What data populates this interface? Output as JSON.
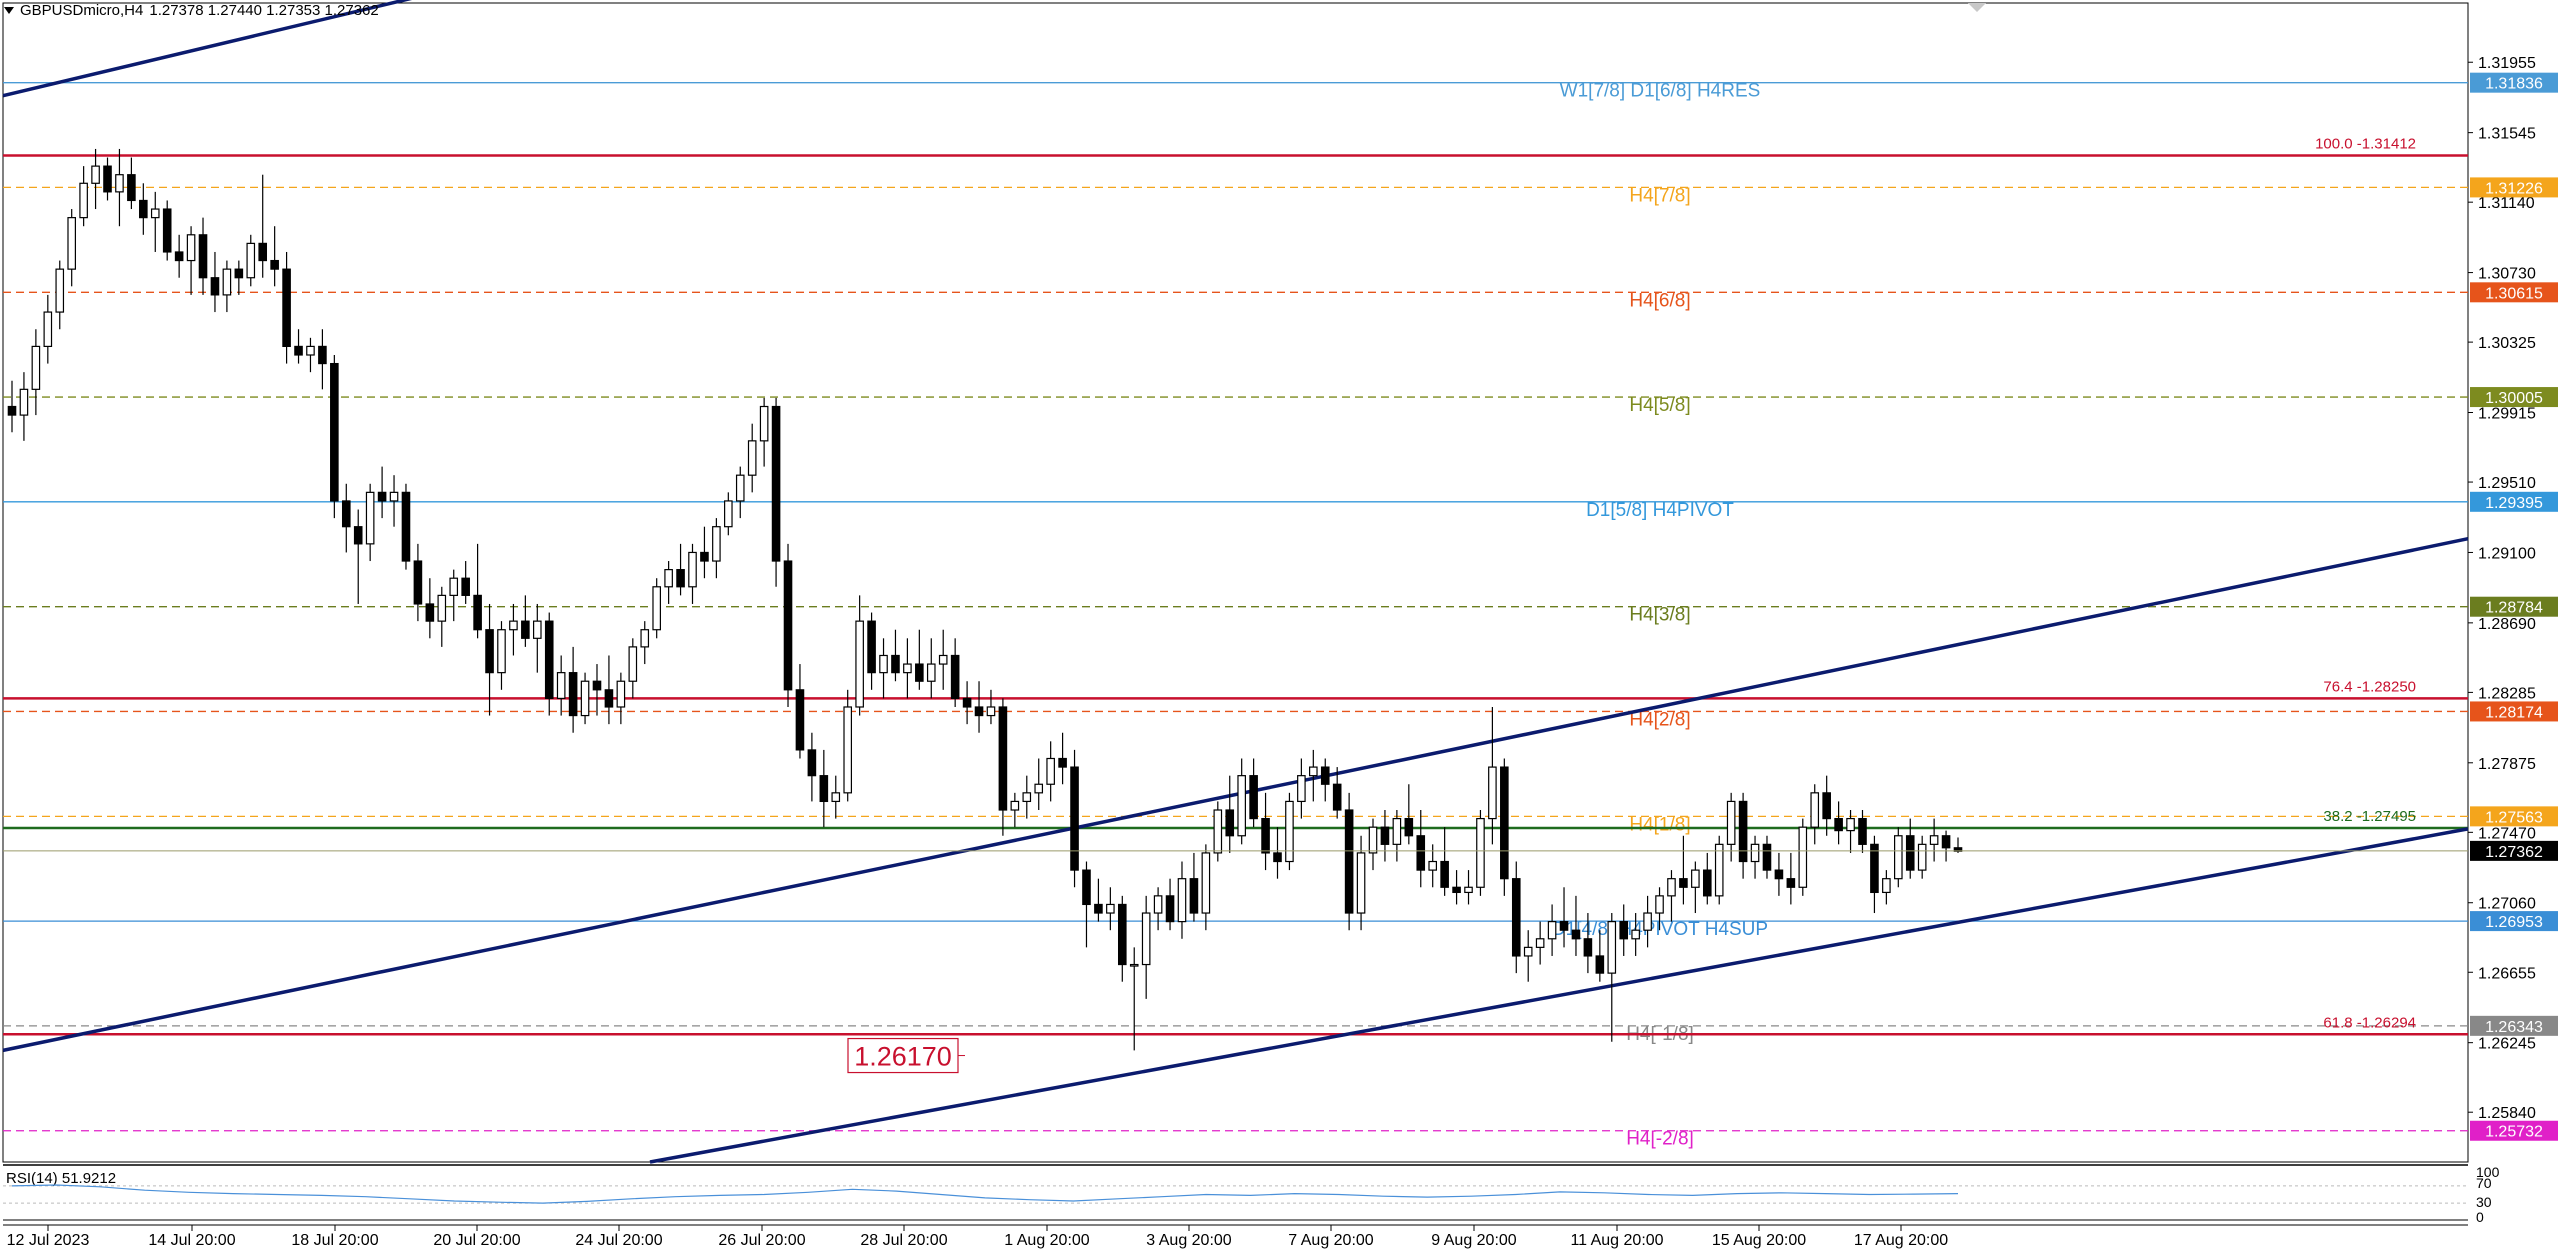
{
  "header": {
    "symbol": "GBPUSDmicro,H4",
    "ohlc": "1.27378 1.27440 1.27353 1.27362"
  },
  "chart_data": {
    "type": "candlestick",
    "ylim": [
      1.2555,
      1.323
    ],
    "price_ticks": [
      "1.31955",
      "1.31545",
      "1.31140",
      "1.30730",
      "1.30325",
      "1.29915",
      "1.29510",
      "1.29100",
      "1.28690",
      "1.28285",
      "1.27875",
      "1.27470",
      "1.27060",
      "1.26655",
      "1.26245",
      "1.25840"
    ],
    "x_labels": [
      "12 Jul 2023",
      "14 Jul 20:00",
      "18 Jul 20:00",
      "20 Jul 20:00",
      "24 Jul 20:00",
      "26 Jul 20:00",
      "28 Jul 20:00",
      "1 Aug 20:00",
      "3 Aug 20:00",
      "7 Aug 20:00",
      "9 Aug 20:00",
      "11 Aug 20:00",
      "15 Aug 20:00",
      "17 Aug 20:00"
    ],
    "levels": [
      {
        "value": 1.31836,
        "badge": "1.31836",
        "label": "W1[7/8] D1[6/8] H4RES",
        "color": "#4a9bd6",
        "style": "solid"
      },
      {
        "value": 1.31412,
        "badge": "",
        "label": "100.0 -1.31412",
        "color": "#c8102e",
        "style": "solid"
      },
      {
        "value": 1.31226,
        "badge": "1.31226",
        "label": "H4[7/8]",
        "color": "#f4a51c",
        "style": "dash"
      },
      {
        "value": 1.30615,
        "badge": "1.30615",
        "label": "H4[6/8]",
        "color": "#e6541b",
        "style": "dash"
      },
      {
        "value": 1.30005,
        "badge": "1.30005",
        "label": "H4[5/8]",
        "color": "#7d8b1f",
        "style": "dash"
      },
      {
        "value": 1.29395,
        "badge": "1.29395",
        "label": "D1[5/8] H4PIVOT",
        "color": "#3498db",
        "style": "solid"
      },
      {
        "value": 1.28784,
        "badge": "1.28784",
        "label": "H4[3/8]",
        "color": "#6b7d1f",
        "style": "dash"
      },
      {
        "value": 1.2825,
        "badge": "",
        "label": "76.4 -1.28250",
        "color": "#c8102e",
        "style": "solid"
      },
      {
        "value": 1.28174,
        "badge": "1.28174",
        "label": "H4[2/8]",
        "color": "#e6541b",
        "style": "dash"
      },
      {
        "value": 1.27563,
        "badge": "1.27563",
        "label": "H4[1/8]",
        "color": "#f4a51c",
        "style": "dash"
      },
      {
        "value": 1.27495,
        "badge": "",
        "label": "38.2 -1.27495",
        "color": "#1e6b1e",
        "style": "solid"
      },
      {
        "value": 1.26953,
        "badge": "1.26953",
        "label": "D1[4/8] H4PIVOT H4SUP",
        "color": "#3a8ed6",
        "style": "solid"
      },
      {
        "value": 1.26343,
        "badge": "1.26343",
        "label": "H4[-1/8]",
        "color": "#888888",
        "style": "dash"
      },
      {
        "value": 1.26294,
        "badge": "",
        "label": "61.8 -1.26294",
        "color": "#c8102e",
        "style": "solid"
      },
      {
        "value": 1.25732,
        "badge": "1.25732",
        "label": "H4[-2/8]",
        "color": "#e020c8",
        "style": "dash"
      }
    ],
    "current_price": "1.27362",
    "low_marker": "1.26170",
    "rsi": {
      "label": "RSI(14) 51.9212",
      "ticks": [
        "100",
        "70",
        "30",
        "0"
      ]
    },
    "candles": [
      [
        1.2995,
        1.301,
        1.298,
        1.299
      ],
      [
        1.299,
        1.3015,
        1.2975,
        1.3005
      ],
      [
        1.3005,
        1.304,
        1.299,
        1.303
      ],
      [
        1.303,
        1.306,
        1.302,
        1.305
      ],
      [
        1.305,
        1.308,
        1.304,
        1.3075
      ],
      [
        1.3075,
        1.311,
        1.3065,
        1.3105
      ],
      [
        1.3105,
        1.3135,
        1.31,
        1.3125
      ],
      [
        1.3125,
        1.3145,
        1.311,
        1.3135
      ],
      [
        1.3135,
        1.314,
        1.3115,
        1.312
      ],
      [
        1.312,
        1.3145,
        1.31,
        1.313
      ],
      [
        1.313,
        1.314,
        1.311,
        1.3115
      ],
      [
        1.3115,
        1.3125,
        1.3095,
        1.3105
      ],
      [
        1.3105,
        1.312,
        1.3085,
        1.311
      ],
      [
        1.311,
        1.3115,
        1.308,
        1.3085
      ],
      [
        1.3085,
        1.3095,
        1.307,
        1.308
      ],
      [
        1.308,
        1.31,
        1.306,
        1.3095
      ],
      [
        1.3095,
        1.3105,
        1.306,
        1.307
      ],
      [
        1.307,
        1.3085,
        1.305,
        1.306
      ],
      [
        1.306,
        1.308,
        1.305,
        1.3075
      ],
      [
        1.3075,
        1.308,
        1.306,
        1.307
      ],
      [
        1.307,
        1.3095,
        1.3065,
        1.309
      ],
      [
        1.309,
        1.313,
        1.307,
        1.308
      ],
      [
        1.308,
        1.31,
        1.3065,
        1.3075
      ],
      [
        1.3075,
        1.3085,
        1.302,
        1.303
      ],
      [
        1.303,
        1.304,
        1.302,
        1.3025
      ],
      [
        1.3025,
        1.3035,
        1.3015,
        1.303
      ],
      [
        1.303,
        1.304,
        1.3005,
        1.302
      ],
      [
        1.302,
        1.3025,
        1.293,
        1.294
      ],
      [
        1.294,
        1.295,
        1.291,
        1.2925
      ],
      [
        1.2925,
        1.2935,
        1.288,
        1.2915
      ],
      [
        1.2915,
        1.295,
        1.2905,
        1.2945
      ],
      [
        1.2945,
        1.296,
        1.293,
        1.294
      ],
      [
        1.294,
        1.2955,
        1.2925,
        1.2945
      ],
      [
        1.2945,
        1.295,
        1.29,
        1.2905
      ],
      [
        1.2905,
        1.2915,
        1.287,
        1.288
      ],
      [
        1.288,
        1.2895,
        1.286,
        1.287
      ],
      [
        1.287,
        1.289,
        1.2855,
        1.2885
      ],
      [
        1.2885,
        1.29,
        1.287,
        1.2895
      ],
      [
        1.2895,
        1.2905,
        1.288,
        1.2885
      ],
      [
        1.2885,
        1.2915,
        1.286,
        1.2865
      ],
      [
        1.2865,
        1.288,
        1.2815,
        1.284
      ],
      [
        1.284,
        1.287,
        1.283,
        1.2865
      ],
      [
        1.2865,
        1.288,
        1.285,
        1.287
      ],
      [
        1.287,
        1.2885,
        1.2855,
        1.286
      ],
      [
        1.286,
        1.288,
        1.284,
        1.287
      ],
      [
        1.287,
        1.2875,
        1.2815,
        1.2825
      ],
      [
        1.2825,
        1.285,
        1.2815,
        1.284
      ],
      [
        1.284,
        1.2855,
        1.2805,
        1.2815
      ],
      [
        1.2815,
        1.284,
        1.281,
        1.2835
      ],
      [
        1.2835,
        1.2845,
        1.2815,
        1.283
      ],
      [
        1.283,
        1.285,
        1.281,
        1.282
      ],
      [
        1.282,
        1.284,
        1.281,
        1.2835
      ],
      [
        1.2835,
        1.286,
        1.2825,
        1.2855
      ],
      [
        1.2855,
        1.287,
        1.2845,
        1.2865
      ],
      [
        1.2865,
        1.2895,
        1.286,
        1.289
      ],
      [
        1.289,
        1.2905,
        1.288,
        1.29
      ],
      [
        1.29,
        1.2915,
        1.2885,
        1.289
      ],
      [
        1.289,
        1.2915,
        1.288,
        1.291
      ],
      [
        1.291,
        1.2925,
        1.2895,
        1.2905
      ],
      [
        1.2905,
        1.293,
        1.2895,
        1.2925
      ],
      [
        1.2925,
        1.2945,
        1.292,
        1.294
      ],
      [
        1.294,
        1.296,
        1.293,
        1.2955
      ],
      [
        1.2955,
        1.2985,
        1.2945,
        1.2975
      ],
      [
        1.2975,
        1.3,
        1.296,
        1.2995
      ],
      [
        1.2995,
        1.3,
        1.289,
        1.2905
      ],
      [
        1.2905,
        1.2915,
        1.282,
        1.283
      ],
      [
        1.283,
        1.2845,
        1.279,
        1.2795
      ],
      [
        1.2795,
        1.2805,
        1.2765,
        1.278
      ],
      [
        1.278,
        1.2795,
        1.275,
        1.2765
      ],
      [
        1.2765,
        1.278,
        1.2755,
        1.277
      ],
      [
        1.277,
        1.283,
        1.2765,
        1.282
      ],
      [
        1.282,
        1.2885,
        1.2815,
        1.287
      ],
      [
        1.287,
        1.2875,
        1.283,
        1.284
      ],
      [
        1.284,
        1.286,
        1.2825,
        1.285
      ],
      [
        1.285,
        1.2865,
        1.2835,
        1.284
      ],
      [
        1.284,
        1.286,
        1.2825,
        1.2845
      ],
      [
        1.2845,
        1.2865,
        1.283,
        1.2835
      ],
      [
        1.2835,
        1.286,
        1.2825,
        1.2845
      ],
      [
        1.2845,
        1.2865,
        1.283,
        1.285
      ],
      [
        1.285,
        1.286,
        1.282,
        1.2825
      ],
      [
        1.2825,
        1.2835,
        1.281,
        1.282
      ],
      [
        1.282,
        1.2835,
        1.2805,
        1.2815
      ],
      [
        1.2815,
        1.283,
        1.281,
        1.282
      ],
      [
        1.282,
        1.2825,
        1.2745,
        1.276
      ],
      [
        1.276,
        1.277,
        1.275,
        1.2765
      ],
      [
        1.2765,
        1.278,
        1.2755,
        1.277
      ],
      [
        1.277,
        1.279,
        1.276,
        1.2775
      ],
      [
        1.2775,
        1.28,
        1.2765,
        1.279
      ],
      [
        1.279,
        1.2805,
        1.2775,
        1.2785
      ],
      [
        1.2785,
        1.2795,
        1.2715,
        1.2725
      ],
      [
        1.2725,
        1.273,
        1.268,
        1.2705
      ],
      [
        1.2705,
        1.272,
        1.2695,
        1.27
      ],
      [
        1.27,
        1.2715,
        1.269,
        1.2705
      ],
      [
        1.2705,
        1.271,
        1.266,
        1.267
      ],
      [
        1.267,
        1.268,
        1.262,
        1.267
      ],
      [
        1.267,
        1.271,
        1.265,
        1.27
      ],
      [
        1.27,
        1.2715,
        1.269,
        1.271
      ],
      [
        1.271,
        1.272,
        1.269,
        1.2695
      ],
      [
        1.2695,
        1.273,
        1.2685,
        1.272
      ],
      [
        1.272,
        1.2735,
        1.2695,
        1.27
      ],
      [
        1.27,
        1.274,
        1.269,
        1.2735
      ],
      [
        1.2735,
        1.2765,
        1.273,
        1.276
      ],
      [
        1.276,
        1.278,
        1.2735,
        1.2745
      ],
      [
        1.2745,
        1.279,
        1.274,
        1.278
      ],
      [
        1.278,
        1.279,
        1.275,
        1.2755
      ],
      [
        1.2755,
        1.277,
        1.2725,
        1.2735
      ],
      [
        1.2735,
        1.275,
        1.272,
        1.273
      ],
      [
        1.273,
        1.277,
        1.2725,
        1.2765
      ],
      [
        1.2765,
        1.279,
        1.2755,
        1.278
      ],
      [
        1.278,
        1.2795,
        1.2765,
        1.2785
      ],
      [
        1.2785,
        1.279,
        1.2765,
        1.2775
      ],
      [
        1.2775,
        1.2785,
        1.2755,
        1.276
      ],
      [
        1.276,
        1.277,
        1.269,
        1.27
      ],
      [
        1.27,
        1.2745,
        1.269,
        1.2735
      ],
      [
        1.2735,
        1.2755,
        1.2725,
        1.275
      ],
      [
        1.275,
        1.276,
        1.273,
        1.274
      ],
      [
        1.274,
        1.276,
        1.273,
        1.2755
      ],
      [
        1.2755,
        1.2775,
        1.274,
        1.2745
      ],
      [
        1.2745,
        1.276,
        1.2715,
        1.2725
      ],
      [
        1.2725,
        1.274,
        1.2715,
        1.273
      ],
      [
        1.273,
        1.275,
        1.271,
        1.2715
      ],
      [
        1.2715,
        1.2725,
        1.2705,
        1.2712
      ],
      [
        1.2712,
        1.2725,
        1.2705,
        1.2715
      ],
      [
        1.2715,
        1.276,
        1.271,
        1.2755
      ],
      [
        1.2755,
        1.282,
        1.274,
        1.2785
      ],
      [
        1.2785,
        1.279,
        1.271,
        1.272
      ],
      [
        1.272,
        1.273,
        1.2665,
        1.2675
      ],
      [
        1.2675,
        1.269,
        1.266,
        1.268
      ],
      [
        1.268,
        1.2695,
        1.267,
        1.2685
      ],
      [
        1.2685,
        1.2705,
        1.2675,
        1.2695
      ],
      [
        1.2695,
        1.2715,
        1.268,
        1.269
      ],
      [
        1.269,
        1.271,
        1.2675,
        1.2685
      ],
      [
        1.2685,
        1.27,
        1.2665,
        1.2675
      ],
      [
        1.2675,
        1.269,
        1.266,
        1.2665
      ],
      [
        1.2665,
        1.27,
        1.2625,
        1.2695
      ],
      [
        1.2695,
        1.2705,
        1.2675,
        1.2685
      ],
      [
        1.2685,
        1.27,
        1.2675,
        1.269
      ],
      [
        1.269,
        1.271,
        1.268,
        1.27
      ],
      [
        1.27,
        1.2715,
        1.269,
        1.271
      ],
      [
        1.271,
        1.2725,
        1.2695,
        1.272
      ],
      [
        1.272,
        1.2745,
        1.2705,
        1.2715
      ],
      [
        1.2715,
        1.273,
        1.27,
        1.2725
      ],
      [
        1.2725,
        1.2735,
        1.2705,
        1.271
      ],
      [
        1.271,
        1.2745,
        1.2705,
        1.274
      ],
      [
        1.274,
        1.277,
        1.273,
        1.2765
      ],
      [
        1.2765,
        1.277,
        1.272,
        1.273
      ],
      [
        1.273,
        1.2745,
        1.272,
        1.274
      ],
      [
        1.274,
        1.2745,
        1.272,
        1.2725
      ],
      [
        1.2725,
        1.2735,
        1.271,
        1.272
      ],
      [
        1.272,
        1.2735,
        1.2705,
        1.2715
      ],
      [
        1.2715,
        1.2755,
        1.271,
        1.275
      ],
      [
        1.275,
        1.2775,
        1.274,
        1.277
      ],
      [
        1.277,
        1.278,
        1.2745,
        1.2755
      ],
      [
        1.2755,
        1.2765,
        1.274,
        1.2748
      ],
      [
        1.2748,
        1.276,
        1.2735,
        1.2755
      ],
      [
        1.2755,
        1.276,
        1.2735,
        1.274
      ],
      [
        1.274,
        1.2745,
        1.27,
        1.2712
      ],
      [
        1.2712,
        1.2725,
        1.2705,
        1.272
      ],
      [
        1.272,
        1.275,
        1.2715,
        1.2745
      ],
      [
        1.2745,
        1.2755,
        1.272,
        1.2725
      ],
      [
        1.2725,
        1.2745,
        1.272,
        1.274
      ],
      [
        1.274,
        1.2755,
        1.273,
        1.2745
      ],
      [
        1.2745,
        1.2748,
        1.273,
        1.2738
      ],
      [
        1.2738,
        1.2744,
        1.2735,
        1.2736
      ]
    ]
  }
}
